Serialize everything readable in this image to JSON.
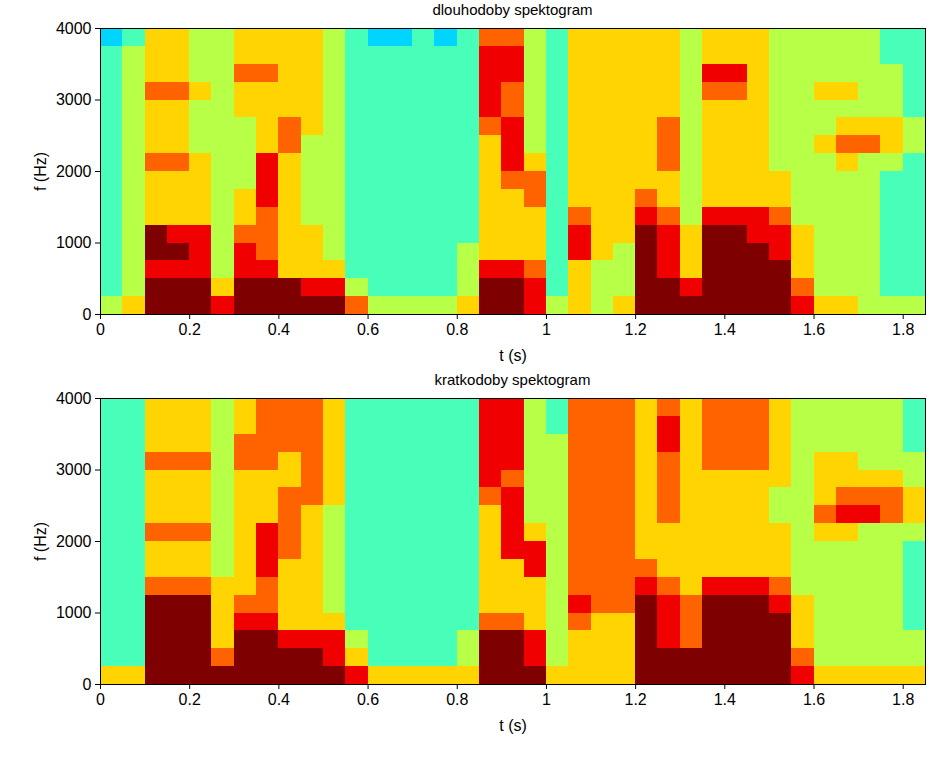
{
  "chart_data": [
    {
      "type": "heatmap",
      "title": "dlouhodoby spektogram",
      "x_label": "t (s)",
      "y_label": "f (Hz)",
      "xlim": [
        0,
        1.85
      ],
      "ylim": [
        0,
        4000
      ],
      "xticks": [
        0,
        0.2,
        0.4,
        0.6,
        0.8,
        1,
        1.2,
        1.4,
        1.6,
        1.8
      ],
      "yticks": [
        0,
        1000,
        2000,
        3000,
        4000
      ],
      "zlim": [
        0,
        9
      ],
      "x": [
        0.025,
        0.075,
        0.125,
        0.175,
        0.225,
        0.275,
        0.325,
        0.375,
        0.425,
        0.475,
        0.525,
        0.575,
        0.625,
        0.675,
        0.725,
        0.775,
        0.825,
        0.875,
        0.925,
        0.975,
        1.025,
        1.075,
        1.125,
        1.175,
        1.225,
        1.275,
        1.325,
        1.375,
        1.425,
        1.475,
        1.525,
        1.575,
        1.625,
        1.675,
        1.725,
        1.775,
        1.825
      ],
      "y": [
        125,
        375,
        625,
        875,
        1125,
        1375,
        1625,
        1875,
        2125,
        2375,
        2625,
        2875,
        3125,
        3375,
        3625,
        3875
      ],
      "values": [
        [
          5,
          6,
          9,
          9,
          9,
          8,
          9,
          9,
          9,
          9,
          9,
          7,
          5,
          5,
          5,
          5,
          6,
          9,
          9,
          8,
          5,
          6,
          5,
          6,
          9,
          9,
          9,
          9,
          9,
          9,
          9,
          8,
          6,
          6,
          5,
          5,
          5
        ],
        [
          4,
          5,
          9,
          9,
          9,
          6,
          9,
          9,
          9,
          8,
          8,
          5,
          4,
          4,
          4,
          4,
          5,
          9,
          9,
          8,
          4,
          6,
          5,
          5,
          9,
          9,
          8,
          9,
          9,
          9,
          9,
          7,
          5,
          5,
          5,
          4,
          4
        ],
        [
          4,
          5,
          8,
          8,
          8,
          5,
          8,
          8,
          6,
          6,
          6,
          4,
          4,
          4,
          4,
          4,
          5,
          8,
          8,
          7,
          4,
          6,
          5,
          5,
          9,
          8,
          6,
          9,
          9,
          9,
          9,
          6,
          5,
          5,
          5,
          4,
          4
        ],
        [
          4,
          5,
          9,
          9,
          8,
          5,
          8,
          7,
          6,
          6,
          5,
          4,
          4,
          4,
          4,
          4,
          5,
          6,
          6,
          6,
          4,
          8,
          6,
          5,
          9,
          8,
          6,
          9,
          9,
          9,
          8,
          6,
          5,
          5,
          5,
          4,
          4
        ],
        [
          4,
          5,
          9,
          8,
          8,
          5,
          7,
          7,
          6,
          6,
          5,
          4,
          4,
          4,
          4,
          4,
          4,
          6,
          6,
          6,
          4,
          8,
          6,
          6,
          9,
          8,
          6,
          9,
          9,
          8,
          8,
          6,
          5,
          5,
          5,
          4,
          4
        ],
        [
          4,
          5,
          6,
          6,
          6,
          5,
          6,
          7,
          6,
          5,
          5,
          4,
          4,
          4,
          4,
          4,
          4,
          6,
          6,
          6,
          4,
          7,
          6,
          6,
          8,
          7,
          5,
          8,
          8,
          8,
          7,
          5,
          5,
          5,
          5,
          4,
          4
        ],
        [
          4,
          5,
          6,
          6,
          6,
          5,
          6,
          8,
          6,
          5,
          5,
          4,
          4,
          4,
          4,
          4,
          4,
          6,
          6,
          7,
          4,
          6,
          6,
          6,
          7,
          6,
          5,
          6,
          6,
          6,
          6,
          5,
          5,
          5,
          5,
          4,
          4
        ],
        [
          4,
          5,
          6,
          6,
          6,
          5,
          5,
          8,
          6,
          5,
          5,
          4,
          4,
          4,
          4,
          4,
          4,
          6,
          7,
          7,
          4,
          6,
          6,
          6,
          6,
          6,
          5,
          6,
          6,
          6,
          6,
          5,
          5,
          5,
          5,
          4,
          4
        ],
        [
          4,
          5,
          7,
          7,
          6,
          5,
          5,
          8,
          6,
          5,
          5,
          4,
          4,
          4,
          4,
          4,
          4,
          6,
          8,
          6,
          4,
          6,
          6,
          6,
          6,
          7,
          5,
          6,
          6,
          6,
          5,
          5,
          5,
          6,
          5,
          5,
          4
        ],
        [
          4,
          5,
          6,
          6,
          5,
          5,
          5,
          6,
          7,
          5,
          5,
          4,
          4,
          4,
          4,
          4,
          4,
          6,
          8,
          5,
          4,
          6,
          6,
          6,
          6,
          7,
          5,
          6,
          6,
          6,
          5,
          5,
          6,
          7,
          7,
          6,
          5
        ],
        [
          4,
          5,
          6,
          6,
          5,
          5,
          5,
          6,
          7,
          6,
          5,
          4,
          4,
          4,
          4,
          4,
          4,
          7,
          8,
          5,
          4,
          6,
          6,
          6,
          6,
          7,
          5,
          6,
          6,
          6,
          5,
          5,
          5,
          6,
          6,
          6,
          5
        ],
        [
          4,
          5,
          6,
          6,
          5,
          5,
          6,
          6,
          6,
          6,
          5,
          4,
          4,
          4,
          4,
          4,
          4,
          8,
          7,
          5,
          4,
          6,
          6,
          6,
          6,
          6,
          5,
          6,
          6,
          6,
          5,
          5,
          5,
          5,
          5,
          5,
          4
        ],
        [
          4,
          5,
          7,
          7,
          6,
          5,
          6,
          6,
          6,
          6,
          5,
          4,
          4,
          4,
          4,
          4,
          4,
          8,
          7,
          5,
          4,
          6,
          6,
          6,
          6,
          6,
          5,
          7,
          7,
          6,
          5,
          5,
          6,
          6,
          5,
          5,
          4
        ],
        [
          4,
          5,
          6,
          6,
          5,
          5,
          7,
          7,
          6,
          6,
          5,
          4,
          4,
          4,
          4,
          4,
          4,
          8,
          8,
          5,
          4,
          6,
          6,
          6,
          6,
          6,
          5,
          8,
          8,
          6,
          5,
          5,
          5,
          5,
          5,
          5,
          4
        ],
        [
          4,
          5,
          6,
          6,
          5,
          5,
          6,
          6,
          6,
          6,
          5,
          4,
          4,
          4,
          4,
          4,
          4,
          8,
          8,
          5,
          4,
          6,
          6,
          6,
          6,
          6,
          5,
          6,
          6,
          6,
          5,
          5,
          5,
          5,
          5,
          4,
          4
        ],
        [
          3,
          4,
          6,
          6,
          5,
          5,
          6,
          6,
          6,
          6,
          5,
          4,
          3,
          3,
          4,
          3,
          4,
          7,
          7,
          5,
          4,
          6,
          6,
          6,
          6,
          6,
          5,
          6,
          6,
          6,
          5,
          5,
          5,
          5,
          5,
          4,
          4
        ]
      ]
    },
    {
      "type": "heatmap",
      "title": "kratkodoby spektogram",
      "x_label": "t (s)",
      "y_label": "f (Hz)",
      "xlim": [
        0,
        1.85
      ],
      "ylim": [
        0,
        4000
      ],
      "xticks": [
        0,
        0.2,
        0.4,
        0.6,
        0.8,
        1,
        1.2,
        1.4,
        1.6,
        1.8
      ],
      "yticks": [
        0,
        1000,
        2000,
        3000,
        4000
      ],
      "zlim": [
        0,
        9
      ],
      "x": [
        0.025,
        0.075,
        0.125,
        0.175,
        0.225,
        0.275,
        0.325,
        0.375,
        0.425,
        0.475,
        0.525,
        0.575,
        0.625,
        0.675,
        0.725,
        0.775,
        0.825,
        0.875,
        0.925,
        0.975,
        1.025,
        1.075,
        1.125,
        1.175,
        1.225,
        1.275,
        1.325,
        1.375,
        1.425,
        1.475,
        1.525,
        1.575,
        1.625,
        1.675,
        1.725,
        1.775,
        1.825
      ],
      "y": [
        125,
        375,
        625,
        875,
        1125,
        1375,
        1625,
        1875,
        2125,
        2375,
        2625,
        2875,
        3125,
        3375,
        3625,
        3875
      ],
      "values": [
        [
          6,
          6,
          9,
          9,
          9,
          9,
          9,
          9,
          9,
          9,
          9,
          8,
          6,
          6,
          6,
          6,
          6,
          9,
          9,
          9,
          6,
          6,
          6,
          6,
          9,
          9,
          9,
          9,
          9,
          9,
          9,
          8,
          6,
          6,
          6,
          6,
          6
        ],
        [
          4,
          4,
          9,
          9,
          9,
          7,
          9,
          9,
          9,
          9,
          8,
          6,
          4,
          4,
          4,
          4,
          5,
          9,
          9,
          8,
          5,
          6,
          6,
          6,
          9,
          9,
          9,
          9,
          9,
          9,
          9,
          7,
          5,
          5,
          5,
          5,
          5
        ],
        [
          4,
          4,
          9,
          9,
          9,
          6,
          9,
          9,
          8,
          8,
          8,
          5,
          4,
          4,
          4,
          4,
          5,
          9,
          9,
          8,
          5,
          6,
          6,
          6,
          9,
          8,
          7,
          9,
          9,
          9,
          9,
          6,
          5,
          5,
          5,
          5,
          5
        ],
        [
          4,
          4,
          9,
          9,
          9,
          6,
          8,
          8,
          6,
          6,
          6,
          4,
          4,
          4,
          4,
          4,
          4,
          7,
          7,
          6,
          5,
          7,
          6,
          6,
          9,
          8,
          7,
          9,
          9,
          9,
          9,
          6,
          5,
          5,
          5,
          5,
          4
        ],
        [
          4,
          4,
          9,
          9,
          9,
          6,
          7,
          7,
          6,
          6,
          5,
          4,
          4,
          4,
          4,
          4,
          4,
          6,
          6,
          6,
          5,
          8,
          7,
          7,
          9,
          8,
          7,
          9,
          9,
          9,
          8,
          6,
          5,
          5,
          5,
          5,
          4
        ],
        [
          4,
          4,
          7,
          7,
          7,
          6,
          6,
          7,
          6,
          6,
          5,
          4,
          4,
          4,
          4,
          4,
          4,
          6,
          6,
          6,
          5,
          7,
          7,
          7,
          8,
          7,
          6,
          8,
          8,
          8,
          7,
          5,
          5,
          5,
          5,
          5,
          4
        ],
        [
          4,
          4,
          6,
          6,
          6,
          5,
          6,
          8,
          6,
          6,
          5,
          4,
          4,
          4,
          4,
          4,
          4,
          6,
          6,
          8,
          5,
          7,
          7,
          7,
          7,
          6,
          6,
          6,
          6,
          6,
          6,
          5,
          5,
          5,
          5,
          5,
          4
        ],
        [
          4,
          4,
          6,
          6,
          6,
          5,
          6,
          8,
          7,
          6,
          5,
          4,
          4,
          4,
          4,
          4,
          4,
          6,
          8,
          8,
          5,
          7,
          7,
          7,
          6,
          6,
          6,
          6,
          6,
          6,
          6,
          5,
          5,
          5,
          5,
          5,
          4
        ],
        [
          4,
          4,
          7,
          7,
          7,
          5,
          6,
          8,
          7,
          6,
          5,
          4,
          4,
          4,
          4,
          4,
          4,
          6,
          8,
          6,
          5,
          7,
          7,
          7,
          6,
          6,
          6,
          6,
          6,
          6,
          6,
          5,
          6,
          6,
          5,
          5,
          5
        ],
        [
          4,
          4,
          6,
          6,
          6,
          5,
          6,
          6,
          7,
          6,
          5,
          4,
          4,
          4,
          4,
          4,
          4,
          6,
          8,
          5,
          5,
          7,
          7,
          7,
          6,
          7,
          6,
          6,
          6,
          6,
          5,
          5,
          7,
          8,
          8,
          7,
          6
        ],
        [
          4,
          4,
          6,
          6,
          6,
          5,
          6,
          6,
          7,
          7,
          6,
          4,
          4,
          4,
          4,
          4,
          4,
          7,
          8,
          5,
          5,
          7,
          7,
          7,
          6,
          7,
          6,
          6,
          6,
          6,
          5,
          5,
          6,
          7,
          7,
          7,
          6
        ],
        [
          4,
          4,
          6,
          6,
          6,
          5,
          6,
          6,
          6,
          7,
          6,
          4,
          4,
          4,
          4,
          4,
          4,
          8,
          7,
          5,
          5,
          7,
          7,
          7,
          6,
          7,
          6,
          6,
          6,
          6,
          6,
          5,
          6,
          6,
          6,
          6,
          5
        ],
        [
          4,
          4,
          7,
          7,
          7,
          5,
          7,
          7,
          6,
          7,
          6,
          4,
          4,
          4,
          4,
          4,
          4,
          8,
          8,
          5,
          5,
          7,
          7,
          7,
          6,
          7,
          6,
          7,
          7,
          7,
          6,
          5,
          6,
          6,
          5,
          5,
          5
        ],
        [
          4,
          4,
          6,
          6,
          6,
          5,
          7,
          7,
          7,
          7,
          6,
          4,
          4,
          4,
          4,
          4,
          4,
          8,
          8,
          5,
          5,
          7,
          7,
          7,
          6,
          8,
          6,
          7,
          7,
          7,
          6,
          5,
          5,
          5,
          5,
          5,
          4
        ],
        [
          4,
          4,
          6,
          6,
          6,
          5,
          6,
          7,
          7,
          7,
          6,
          4,
          4,
          4,
          4,
          4,
          4,
          8,
          8,
          5,
          4,
          7,
          7,
          7,
          6,
          8,
          6,
          7,
          7,
          7,
          6,
          5,
          5,
          5,
          5,
          5,
          4
        ],
        [
          4,
          4,
          6,
          6,
          6,
          5,
          6,
          7,
          7,
          7,
          6,
          4,
          4,
          4,
          4,
          4,
          4,
          8,
          8,
          5,
          4,
          7,
          7,
          7,
          6,
          7,
          6,
          7,
          7,
          7,
          6,
          5,
          5,
          5,
          5,
          5,
          4
        ]
      ]
    }
  ]
}
